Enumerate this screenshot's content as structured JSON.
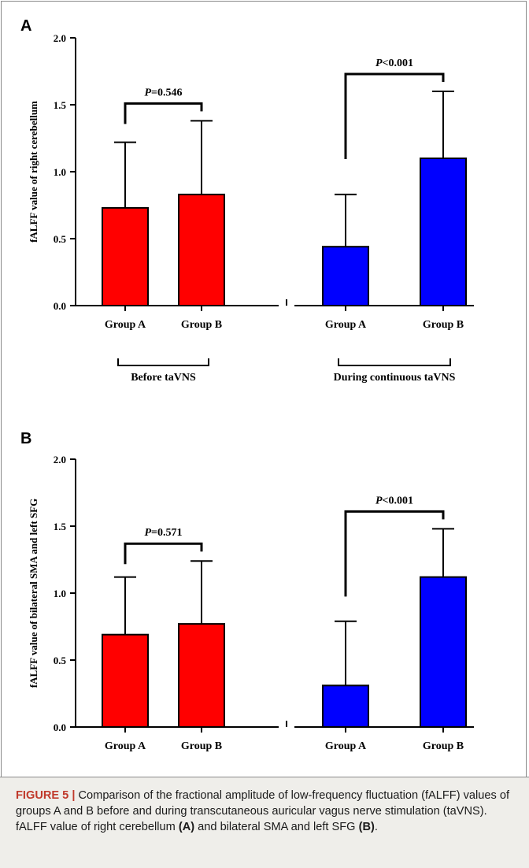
{
  "figure": {
    "panel_a_letter": "A",
    "panel_b_letter": "B",
    "caption": {
      "label": "FIGURE 5 |",
      "text_1": " Comparison of the fractional amplitude of low-frequency fluctuation (fALFF) values of groups A and B before and during transcutaneous auricular vagus nerve stimulation (taVNS). fALFF value of right cerebellum ",
      "ref_a": "(A)",
      "text_2": " and bilateral SMA and left SFG ",
      "ref_b": "(B)",
      "text_3": "."
    }
  },
  "colors": {
    "before": "#ff0000",
    "during": "#0000ff",
    "caption_bg": "#efeeea",
    "caption_label": "#c0392b"
  },
  "chart_data": [
    {
      "type": "bar",
      "panel": "A",
      "ylabel": "fALFF value of right cerebellum",
      "ylim": [
        0,
        2.0
      ],
      "yticks": [
        "0.0",
        "0.5",
        "1.0",
        "1.5",
        "2.0"
      ],
      "groups": [
        {
          "label": "Before taVNS",
          "categories": [
            "Group A",
            "Group B"
          ],
          "values": [
            0.73,
            0.83
          ],
          "errors": [
            0.49,
            0.55
          ],
          "color": "#ff0000",
          "p_label_italic": "P",
          "p_label_rest": "=0.546"
        },
        {
          "label": "During continuous taVNS",
          "categories": [
            "Group A",
            "Group B"
          ],
          "values": [
            0.44,
            1.1
          ],
          "errors": [
            0.39,
            0.5
          ],
          "color": "#0000ff",
          "p_label_italic": "P",
          "p_label_rest": "<0.001"
        }
      ]
    },
    {
      "type": "bar",
      "panel": "B",
      "ylabel": "fALFF value of bilateral SMA and left SFG",
      "ylim": [
        0,
        2.0
      ],
      "yticks": [
        "0.0",
        "0.5",
        "1.0",
        "1.5",
        "2.0"
      ],
      "groups": [
        {
          "label": "Before taVNS",
          "categories": [
            "Group A",
            "Group B"
          ],
          "values": [
            0.69,
            0.77
          ],
          "errors": [
            0.43,
            0.47
          ],
          "color": "#ff0000",
          "p_label_italic": "P",
          "p_label_rest": "=0.571"
        },
        {
          "label": "During continuous taVNS",
          "categories": [
            "Group A",
            "Group B"
          ],
          "values": [
            0.31,
            1.12
          ],
          "errors": [
            0.48,
            0.36
          ],
          "color": "#0000ff",
          "p_label_italic": "P",
          "p_label_rest": "<0.001"
        }
      ]
    }
  ]
}
